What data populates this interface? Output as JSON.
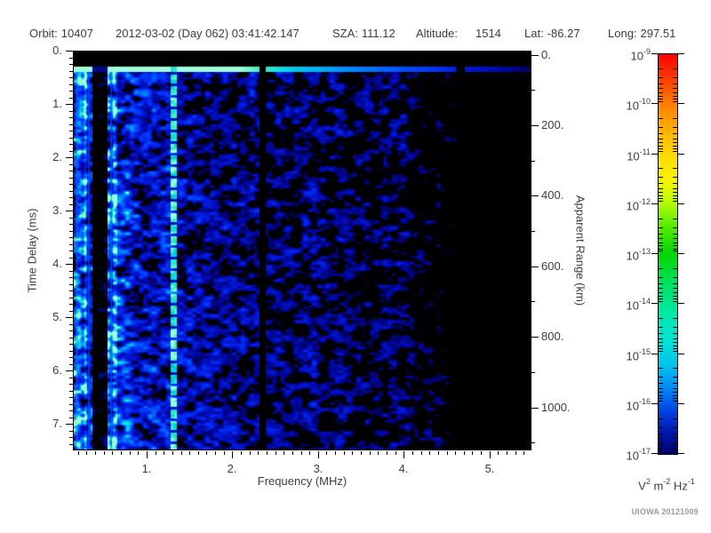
{
  "header": {
    "orbit_label": "Orbit:",
    "orbit": "10407",
    "datetime": "2012-03-02 (Day 062) 03:41:42.147",
    "sza_label": "SZA:",
    "sza": "111.12",
    "altitude_label": "Altitude:",
    "altitude": "1514",
    "lat_label": "Lat:",
    "lat": "-86.27",
    "long_label": "Long:",
    "long": "297.51"
  },
  "footer": {
    "credit": "UIOWA 20121009"
  },
  "chart_data": {
    "type": "heatmap",
    "description": "MARSIS AIS radar sounder ionogram: received spectral density (V^2 m^-2 Hz^-1, log color scale 1e-17 to 1e-9) versus sounding frequency and echo time delay; blue noise field with bright transmit line near 0.3 ms, bright interference line near 1.3 MHz, black data gap near 2.35 MHz, and fading signal above ~4.3 MHz",
    "xlabel": "Frequency (MHz)",
    "ylabel": "Time Delay (ms)",
    "y2label": "Apparent Range (km)",
    "xlim": [
      0.14,
      5.49
    ],
    "ylim": [
      0,
      7.5
    ],
    "x_ticks": {
      "values": [
        1,
        2,
        3,
        4,
        5
      ],
      "labels": [
        "1.",
        "2.",
        "3.",
        "4.",
        "5."
      ],
      "minor_step": 0.1
    },
    "y_ticks": {
      "values": [
        0,
        1,
        2,
        3,
        4,
        5,
        6,
        7
      ],
      "labels": [
        "0.",
        "1.",
        "2.",
        "3.",
        "4.",
        "5.",
        "6.",
        "7."
      ],
      "minor_step": 0.125
    },
    "y2_ticks": {
      "values": [
        0,
        200,
        400,
        600,
        800,
        1000
      ],
      "labels": [
        "0.",
        "200.",
        "400.",
        "600.",
        "800.",
        "1000."
      ],
      "minor_step": 100,
      "minor_max": 1100
    },
    "colorbar": {
      "base": "10",
      "exponents": [
        "-9",
        "-10",
        "-11",
        "-12",
        "-13",
        "-14",
        "-15",
        "-16",
        "-17"
      ],
      "minor_log_marks": [
        2,
        3,
        4,
        5,
        6,
        7,
        8,
        9
      ],
      "unit_parts": [
        {
          "t": "V"
        },
        {
          "t": "2",
          "sup": true
        },
        {
          "t": " m"
        },
        {
          "t": "-2",
          "sup": true
        },
        {
          "t": " Hz"
        },
        {
          "t": "-1",
          "sup": true
        }
      ],
      "gradient": [
        [
          0,
          "#fa0000"
        ],
        [
          0.06,
          "#ff3c00"
        ],
        [
          0.125,
          "#ff7e00"
        ],
        [
          0.19,
          "#ffb000"
        ],
        [
          0.25,
          "#ffd800"
        ],
        [
          0.31,
          "#fdf200"
        ],
        [
          0.36,
          "#c8fc00"
        ],
        [
          0.42,
          "#64ee00"
        ],
        [
          0.5,
          "#00d800"
        ],
        [
          0.58,
          "#00e268"
        ],
        [
          0.65,
          "#00e8a6"
        ],
        [
          0.72,
          "#00e2d6"
        ],
        [
          0.78,
          "#00c2ee"
        ],
        [
          0.84,
          "#0082f4"
        ],
        [
          0.895,
          "#0040e0"
        ],
        [
          0.95,
          "#0016a8"
        ],
        [
          1,
          "#00006e"
        ]
      ]
    },
    "spectrogram": {
      "seed": 7,
      "octaves": [
        {
          "cx": 10,
          "cy": 6.6,
          "w": 0.6
        },
        {
          "cx": 5,
          "cy": 3.3,
          "w": 0.4
        }
      ],
      "envelope": [
        [
          0.14,
          1.06
        ],
        [
          0.55,
          1.06
        ],
        [
          1.6,
          0.8
        ],
        [
          2.35,
          0.68
        ],
        [
          3.2,
          0.64
        ],
        [
          4.3,
          0.52
        ],
        [
          5.49,
          0.36
        ]
      ],
      "threshold": [
        [
          0.14,
          0.3
        ],
        [
          4.2,
          0.31
        ],
        [
          4.7,
          0.4
        ],
        [
          5.49,
          0.46
        ]
      ],
      "colormap": [
        [
          0,
          "#000050"
        ],
        [
          0.16,
          "#0008a8"
        ],
        [
          0.36,
          "#0020e8"
        ],
        [
          0.55,
          "#0048ff"
        ],
        [
          0.72,
          "#0090ff"
        ],
        [
          0.86,
          "#00d0e8"
        ],
        [
          0.94,
          "#40efc0"
        ],
        [
          1,
          "#a0ffd8"
        ]
      ],
      "left_striping": {
        "f_max": 0.65,
        "cell": 3.2,
        "base": 0.4,
        "amp": 1.35
      },
      "column_striping": {
        "cell": 12,
        "base": 0.85,
        "amp": 0.3
      },
      "saturation_band": {
        "t0": 0,
        "t1": 0.28
      },
      "transmit_line": {
        "t0": 0.28,
        "t1": 0.39,
        "v0": 1.35,
        "slope": -0.16
      },
      "dark_bands": [
        {
          "f0": 0.36,
          "f1": 0.54,
          "mult": 0.3
        },
        {
          "f0": 2.32,
          "f1": 2.39,
          "mult": 0.05
        },
        {
          "f0": 4.62,
          "f1": 4.72,
          "mult": 0.35
        }
      ],
      "bright_lines": [
        {
          "f": 0.175,
          "halfw": 0.012,
          "kind": "thin"
        },
        {
          "f": 0.32,
          "halfw": 0.012,
          "kind": "thin"
        },
        {
          "f": 0.575,
          "halfw": 0.012,
          "kind": "thin"
        },
        {
          "f": 1.315,
          "halfw": 0.036,
          "kind": "broad-dashed",
          "dash_on": 10,
          "dash_period": 13
        }
      ]
    }
  }
}
